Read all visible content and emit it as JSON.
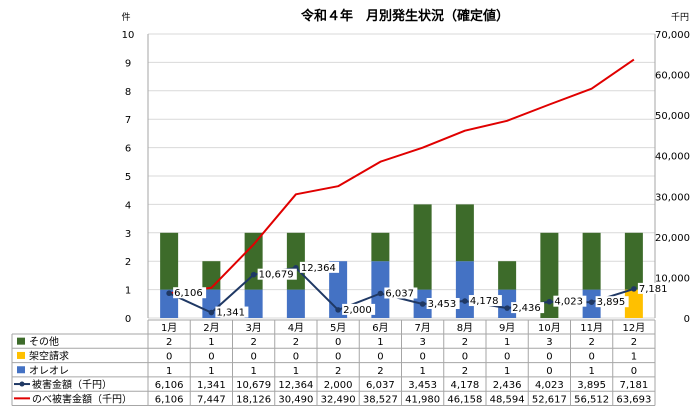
{
  "chart_data": {
    "type": "bar",
    "title": "令和４年　月別発生状況（確定値）",
    "y_left_unit": "件",
    "y_right_unit": "千円",
    "ylim_left": [
      0,
      10
    ],
    "ylim_right": [
      0,
      70000
    ],
    "y_left_ticks": [
      "0",
      "1",
      "2",
      "3",
      "4",
      "5",
      "6",
      "7",
      "8",
      "9",
      "10"
    ],
    "y_right_ticks": [
      "0",
      "10,000",
      "20,000",
      "30,000",
      "40,000",
      "50,000",
      "60,000",
      "70,000"
    ],
    "categories": [
      "1月",
      "2月",
      "3月",
      "4月",
      "5月",
      "6月",
      "7月",
      "8月",
      "9月",
      "10月",
      "11月",
      "12月"
    ],
    "grid": true,
    "legend": "data-table",
    "series": [
      {
        "name": "その他",
        "kind": "bar-stacked",
        "color": "#3d6b2a",
        "values": [
          2,
          1,
          2,
          2,
          0,
          1,
          3,
          2,
          1,
          3,
          2,
          2
        ],
        "labels": [
          "2",
          "1",
          "2",
          "2",
          "0",
          "1",
          "3",
          "2",
          "1",
          "3",
          "2",
          "2"
        ]
      },
      {
        "name": "架空請求",
        "kind": "bar-stacked",
        "color": "#ffc000",
        "values": [
          0,
          0,
          0,
          0,
          0,
          0,
          0,
          0,
          0,
          0,
          0,
          1
        ],
        "labels": [
          "0",
          "0",
          "0",
          "0",
          "0",
          "0",
          "0",
          "0",
          "0",
          "0",
          "0",
          "1"
        ]
      },
      {
        "name": "オレオレ",
        "kind": "bar-stacked",
        "color": "#4472c4",
        "values": [
          1,
          1,
          1,
          1,
          2,
          2,
          1,
          2,
          1,
          0,
          1,
          0
        ],
        "labels": [
          "1",
          "1",
          "1",
          "1",
          "2",
          "2",
          "1",
          "2",
          "1",
          "0",
          "1",
          "0"
        ]
      },
      {
        "name": "被害金額（千円）",
        "kind": "line-marker",
        "color": "#1f3864",
        "values": [
          6106,
          1341,
          10679,
          12364,
          2000,
          6037,
          3453,
          4178,
          2436,
          4023,
          3895,
          7181
        ],
        "labels": [
          "6,106",
          "1,341",
          "10,679",
          "12,364",
          "2,000",
          "6,037",
          "3,453",
          "4,178",
          "2,436",
          "4,023",
          "3,895",
          "7,181"
        ]
      },
      {
        "name": "のべ被害金額（千円）",
        "kind": "line",
        "color": "#e00000",
        "values": [
          6106,
          7447,
          18126,
          30490,
          32490,
          38527,
          41980,
          46158,
          48594,
          52617,
          56512,
          63693
        ],
        "labels": [
          "6,106",
          "7,447",
          "18,126",
          "30,490",
          "32,490",
          "38,527",
          "41,980",
          "46,158",
          "48,594",
          "52,617",
          "56,512",
          "63,693"
        ]
      }
    ]
  }
}
